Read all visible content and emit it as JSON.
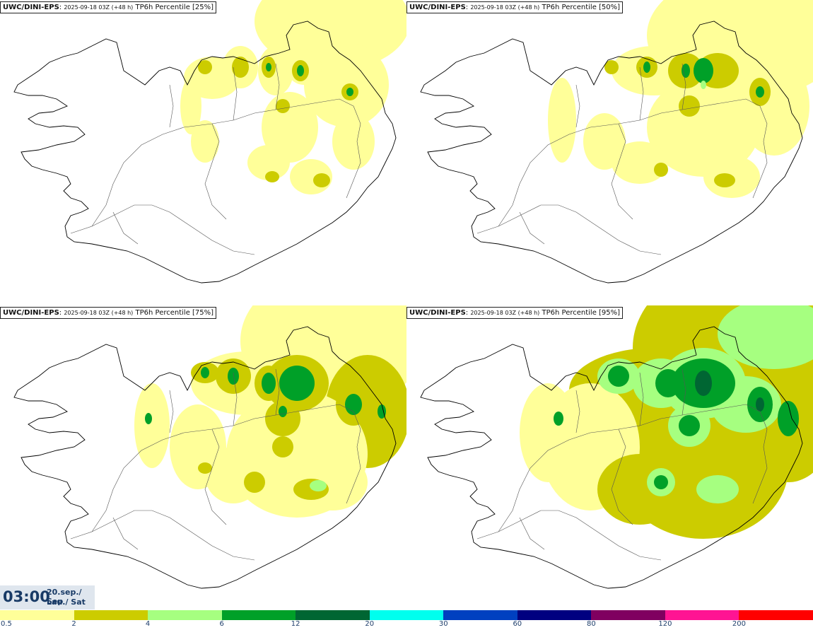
{
  "panels": [
    {
      "model": "UWC/DINI-EPS",
      "run": "2025-09-18 03Z (+48 h)",
      "label": "TP6h Percentile [25%]"
    },
    {
      "model": "UWC/DINI-EPS",
      "run": "2025-09-18 03Z (+48 h)",
      "label": "TP6h Percentile [50%]"
    },
    {
      "model": "UWC/DINI-EPS",
      "run": "2025-09-18 03Z (+48 h)",
      "label": "TP6h Percentile [75%]"
    },
    {
      "model": "UWC/DINI-EPS",
      "run": "2025-09-18 03Z (+48 h)",
      "label": "TP6h Percentile [95%]"
    }
  ],
  "valid_time": {
    "clock": "03:00",
    "date": "20.sep./ Sep",
    "day": "Lau./ Sat"
  },
  "legend": {
    "ticks": [
      "0.5",
      "2",
      "4",
      "6",
      "12",
      "20",
      "30",
      "60",
      "80",
      "120",
      "200"
    ],
    "colors": [
      "#ffff99",
      "#cccc00",
      "#a6ff80",
      "#00a028",
      "#006633",
      "#00ffee",
      "#0040c0",
      "#000080",
      "#800060",
      "#ff1493",
      "#ff0000"
    ]
  },
  "map": {
    "region": "Iceland",
    "border_color": "#000000"
  }
}
